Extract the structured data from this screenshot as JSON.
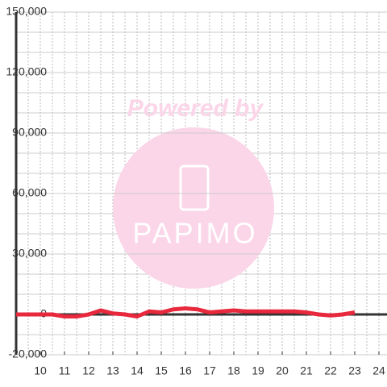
{
  "chart_data": {
    "type": "line",
    "watermark": {
      "text": "Powered by",
      "logo": "PAPIMO"
    },
    "x": [
      9,
      9.5,
      10,
      10.5,
      11,
      11.5,
      12,
      12.5,
      13,
      13.5,
      14,
      14.5,
      15,
      15.5,
      16,
      16.5,
      17,
      17.5,
      18,
      18.5,
      19,
      19.5,
      20,
      20.5,
      21,
      21.5,
      22,
      22.5,
      23
    ],
    "series": [
      {
        "color": "#e8283c",
        "values": [
          0,
          0,
          0,
          0,
          -1000,
          -1000,
          0,
          2000,
          500,
          0,
          -1000,
          1500,
          1000,
          2500,
          3000,
          2500,
          1000,
          1500,
          2000,
          1500,
          1500,
          1500,
          1500,
          1500,
          1000,
          0,
          -500,
          0,
          1000
        ]
      }
    ],
    "xlim": [
      9,
      24.333
    ],
    "xticks": [
      10,
      11,
      12,
      13,
      14,
      15,
      16,
      17,
      18,
      19,
      20,
      21,
      22,
      23,
      24
    ],
    "xgrid": [
      9.5,
      10,
      10.5,
      11,
      11.5,
      12,
      12.5,
      13,
      13.5,
      14,
      14.5,
      15,
      15.5,
      16,
      16.5,
      17,
      17.5,
      18,
      18.5,
      19,
      19.5,
      20,
      20.5,
      21,
      21.5,
      22,
      22.5,
      23,
      23.5,
      24
    ],
    "ylim": [
      -20000,
      150000
    ],
    "yticks": [
      {
        "value": 150000,
        "label": "150,000"
      },
      {
        "value": 120000,
        "label": "120,000"
      },
      {
        "value": 90000,
        "label": "90,000"
      },
      {
        "value": 60000,
        "label": "60,000"
      },
      {
        "value": 30000,
        "label": "30,000"
      },
      0,
      {
        "value": -20000,
        "label": "-20,000"
      }
    ],
    "ygrid": [
      -20000,
      -10000,
      10000,
      20000,
      30000,
      40000,
      50000,
      60000,
      70000,
      80000,
      90000,
      100000,
      110000,
      120000,
      130000,
      140000,
      150000
    ],
    "grid": true
  }
}
